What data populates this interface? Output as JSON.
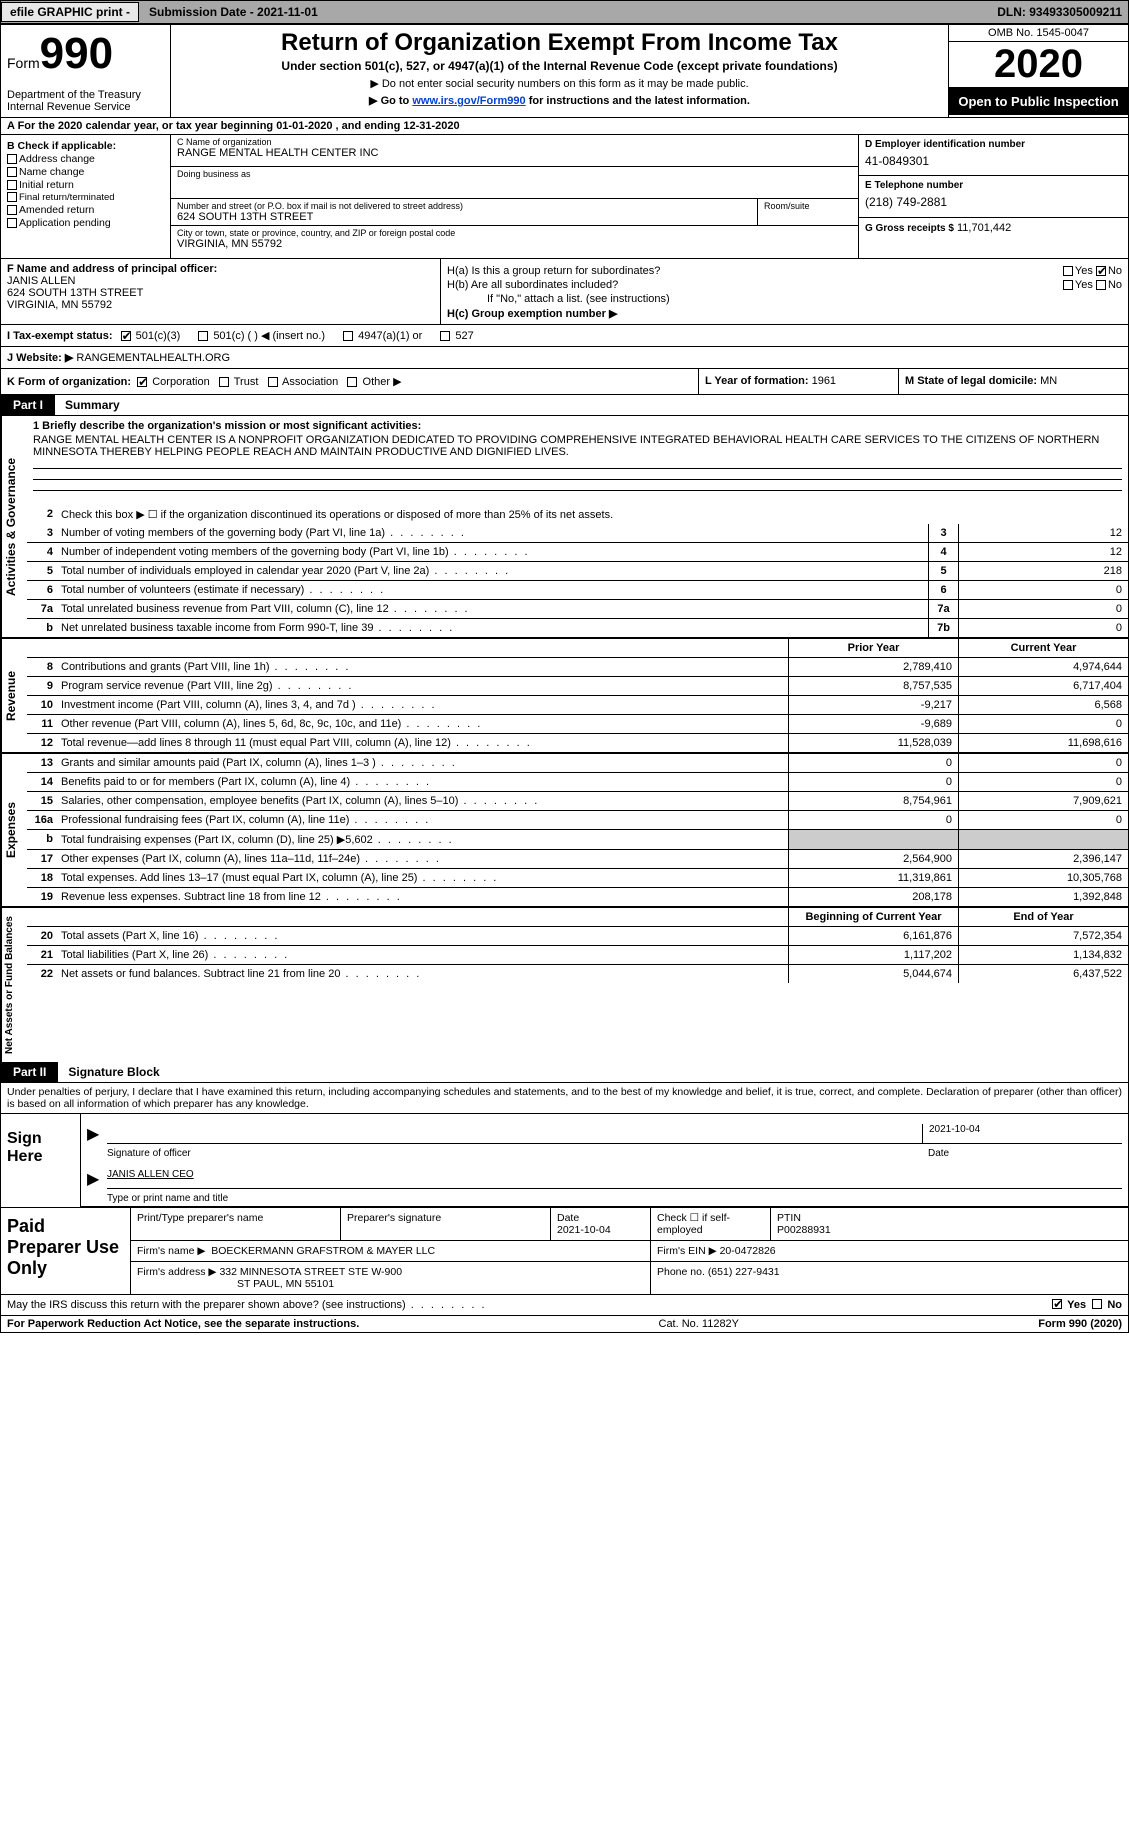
{
  "topbar": {
    "efile": "efile GRAPHIC print -",
    "submission": "Submission Date - 2021-11-01",
    "dln": "DLN: 93493305009211"
  },
  "header": {
    "form_word": "Form",
    "form_num": "990",
    "dept": "Department of the Treasury Internal Revenue Service",
    "title": "Return of Organization Exempt From Income Tax",
    "sub1": "Under section 501(c), 527, or 4947(a)(1) of the Internal Revenue Code (except private foundations)",
    "sub2": "▶ Do not enter social security numbers on this form as it may be made public.",
    "sub3_pre": "▶ Go to ",
    "sub3_link": "www.irs.gov/Form990",
    "sub3_post": " for instructions and the latest information.",
    "omb": "OMB No. 1545-0047",
    "year": "2020",
    "inspect": "Open to Public Inspection"
  },
  "period": "A For the 2020 calendar year, or tax year beginning 01-01-2020    , and ending 12-31-2020",
  "B": {
    "label": "B Check if applicable:",
    "opts": [
      "Address change",
      "Name change",
      "Initial return",
      "Final return/terminated",
      "Amended return",
      "Application pending"
    ]
  },
  "C": {
    "name_lbl": "C Name of organization",
    "name": "RANGE MENTAL HEALTH CENTER INC",
    "dba_lbl": "Doing business as",
    "dba": "",
    "addr_lbl": "Number and street (or P.O. box if mail is not delivered to street address)",
    "addr": "624 SOUTH 13TH STREET",
    "room_lbl": "Room/suite",
    "room": "",
    "city_lbl": "City or town, state or province, country, and ZIP or foreign postal code",
    "city": "VIRGINIA, MN  55792"
  },
  "D": {
    "ein_lbl": "D Employer identification number",
    "ein": "41-0849301",
    "phone_lbl": "E Telephone number",
    "phone": "(218) 749-2881",
    "gross_lbl": "G Gross receipts $",
    "gross": "11,701,442"
  },
  "F": {
    "lbl": "F Name and address of principal officer:",
    "name": "JANIS ALLEN",
    "addr1": "624 SOUTH 13TH STREET",
    "addr2": "VIRGINIA, MN  55792"
  },
  "H": {
    "a_lbl": "H(a)  Is this a group return for subordinates?",
    "b_lbl": "H(b)  Are all subordinates included?",
    "note": "If \"No,\" attach a list. (see instructions)",
    "c_lbl": "H(c)  Group exemption number ▶"
  },
  "I": {
    "lbl": "I  Tax-exempt status:",
    "o1": "501(c)(3)",
    "o2": "501(c) (  ) ◀ (insert no.)",
    "o3": "4947(a)(1) or",
    "o4": "527"
  },
  "J": {
    "lbl": "J  Website: ▶",
    "val": "RANGEMENTALHEALTH.ORG"
  },
  "K": {
    "lbl": "K Form of organization:",
    "o1": "Corporation",
    "o2": "Trust",
    "o3": "Association",
    "o4": "Other ▶"
  },
  "L": {
    "lbl": "L Year of formation:",
    "val": "1961"
  },
  "M": {
    "lbl": "M State of legal domicile:",
    "val": "MN"
  },
  "part1": {
    "num": "Part I",
    "title": "Summary"
  },
  "mission": {
    "lbl": "1  Briefly describe the organization's mission or most significant activities:",
    "text": "RANGE MENTAL HEALTH CENTER IS A NONPROFIT ORGANIZATION DEDICATED TO PROVIDING COMPREHENSIVE INTEGRATED BEHAVIORAL HEALTH CARE SERVICES TO THE CITIZENS OF NORTHERN MINNESOTA THEREBY HELPING PEOPLE REACH AND MAINTAIN PRODUCTIVE AND DIGNIFIED LIVES."
  },
  "gov": {
    "l2": "Check this box ▶ ☐  if the organization discontinued its operations or disposed of more than 25% of its net assets.",
    "rows": [
      {
        "n": "3",
        "d": "Number of voting members of the governing body (Part VI, line 1a)",
        "b": "3",
        "v": "12"
      },
      {
        "n": "4",
        "d": "Number of independent voting members of the governing body (Part VI, line 1b)",
        "b": "4",
        "v": "12"
      },
      {
        "n": "5",
        "d": "Total number of individuals employed in calendar year 2020 (Part V, line 2a)",
        "b": "5",
        "v": "218"
      },
      {
        "n": "6",
        "d": "Total number of volunteers (estimate if necessary)",
        "b": "6",
        "v": "0"
      },
      {
        "n": "7a",
        "d": "Total unrelated business revenue from Part VIII, column (C), line 12",
        "b": "7a",
        "v": "0"
      },
      {
        "n": "b",
        "d": "Net unrelated business taxable income from Form 990-T, line 39",
        "b": "7b",
        "v": "0"
      }
    ]
  },
  "rev": {
    "h1": "Prior Year",
    "h2": "Current Year",
    "rows": [
      {
        "n": "8",
        "d": "Contributions and grants (Part VIII, line 1h)",
        "p": "2,789,410",
        "c": "4,974,644"
      },
      {
        "n": "9",
        "d": "Program service revenue (Part VIII, line 2g)",
        "p": "8,757,535",
        "c": "6,717,404"
      },
      {
        "n": "10",
        "d": "Investment income (Part VIII, column (A), lines 3, 4, and 7d )",
        "p": "-9,217",
        "c": "6,568"
      },
      {
        "n": "11",
        "d": "Other revenue (Part VIII, column (A), lines 5, 6d, 8c, 9c, 10c, and 11e)",
        "p": "-9,689",
        "c": "0"
      },
      {
        "n": "12",
        "d": "Total revenue—add lines 8 through 11 (must equal Part VIII, column (A), line 12)",
        "p": "11,528,039",
        "c": "11,698,616"
      }
    ]
  },
  "exp": {
    "rows": [
      {
        "n": "13",
        "d": "Grants and similar amounts paid (Part IX, column (A), lines 1–3 )",
        "p": "0",
        "c": "0"
      },
      {
        "n": "14",
        "d": "Benefits paid to or for members (Part IX, column (A), line 4)",
        "p": "0",
        "c": "0"
      },
      {
        "n": "15",
        "d": "Salaries, other compensation, employee benefits (Part IX, column (A), lines 5–10)",
        "p": "8,754,961",
        "c": "7,909,621"
      },
      {
        "n": "16a",
        "d": "Professional fundraising fees (Part IX, column (A), line 11e)",
        "p": "0",
        "c": "0"
      },
      {
        "n": "b",
        "d": "Total fundraising expenses (Part IX, column (D), line 25) ▶5,602",
        "p": "",
        "c": "",
        "shade": true
      },
      {
        "n": "17",
        "d": "Other expenses (Part IX, column (A), lines 11a–11d, 11f–24e)",
        "p": "2,564,900",
        "c": "2,396,147"
      },
      {
        "n": "18",
        "d": "Total expenses. Add lines 13–17 (must equal Part IX, column (A), line 25)",
        "p": "11,319,861",
        "c": "10,305,768"
      },
      {
        "n": "19",
        "d": "Revenue less expenses. Subtract line 18 from line 12",
        "p": "208,178",
        "c": "1,392,848"
      }
    ]
  },
  "net": {
    "h1": "Beginning of Current Year",
    "h2": "End of Year",
    "rows": [
      {
        "n": "20",
        "d": "Total assets (Part X, line 16)",
        "p": "6,161,876",
        "c": "7,572,354"
      },
      {
        "n": "21",
        "d": "Total liabilities (Part X, line 26)",
        "p": "1,117,202",
        "c": "1,134,832"
      },
      {
        "n": "22",
        "d": "Net assets or fund balances. Subtract line 21 from line 20",
        "p": "5,044,674",
        "c": "6,437,522"
      }
    ]
  },
  "part2": {
    "num": "Part II",
    "title": "Signature Block"
  },
  "sig": {
    "decl": "Under penalties of perjury, I declare that I have examined this return, including accompanying schedules and statements, and to the best of my knowledge and belief, it is true, correct, and complete. Declaration of preparer (other than officer) is based on all information of which preparer has any knowledge.",
    "sign_here": "Sign Here",
    "sig_lbl": "Signature of officer",
    "date": "2021-10-04",
    "date_lbl": "Date",
    "name": "JANIS ALLEN  CEO",
    "name_lbl": "Type or print name and title"
  },
  "paid": {
    "lbl": "Paid Preparer Use Only",
    "h_name": "Print/Type preparer's name",
    "h_sig": "Preparer's signature",
    "h_date": "Date",
    "date": "2021-10-04",
    "h_check": "Check ☐ if self-employed",
    "h_ptin": "PTIN",
    "ptin": "P00288931",
    "firm_lbl": "Firm's name      ▶",
    "firm": "BOECKERMANN GRAFSTROM & MAYER LLC",
    "ein_lbl": "Firm's EIN ▶",
    "ein": "20-0472826",
    "addr_lbl": "Firm's address ▶",
    "addr1": "332 MINNESOTA STREET STE W-900",
    "addr2": "ST PAUL, MN  55101",
    "phone_lbl": "Phone no.",
    "phone": "(651) 227-9431"
  },
  "irs_discuss": "May the IRS discuss this return with the preparer shown above? (see instructions)",
  "footer": {
    "left": "For Paperwork Reduction Act Notice, see the separate instructions.",
    "mid": "Cat. No. 11282Y",
    "right": "Form 990 (2020)"
  },
  "yn": {
    "yes": "Yes",
    "no": "No"
  }
}
